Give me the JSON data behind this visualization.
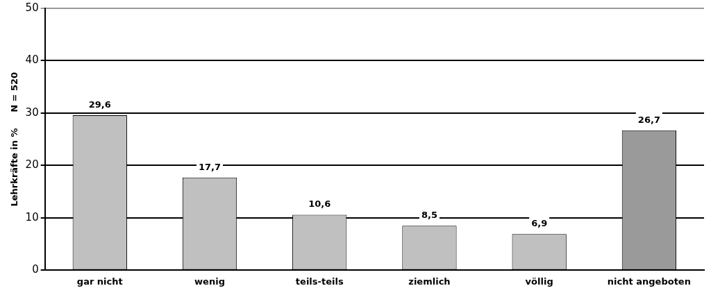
{
  "chart_data": {
    "type": "bar",
    "ylabel": "Lehrkräfte in %     N = 520",
    "categories": [
      "gar nicht",
      "wenig",
      "teils-teils",
      "ziemlich",
      "völlig",
      "nicht angeboten"
    ],
    "values": [
      29.6,
      17.7,
      10.6,
      8.5,
      6.9,
      26.7
    ],
    "colors": [
      "#c0c0c0",
      "#c0c0c0",
      "#c0c0c0",
      "#c0c0c0",
      "#c0c0c0",
      "#9a9a9a"
    ],
    "value_labels": [
      "29,6",
      "17,7",
      "10,6",
      "8,5",
      "6,9",
      "26,7"
    ],
    "ylim": [
      0,
      50
    ],
    "yticks": [
      0,
      10,
      20,
      30,
      40,
      50
    ],
    "grid": "y",
    "legend": false
  }
}
